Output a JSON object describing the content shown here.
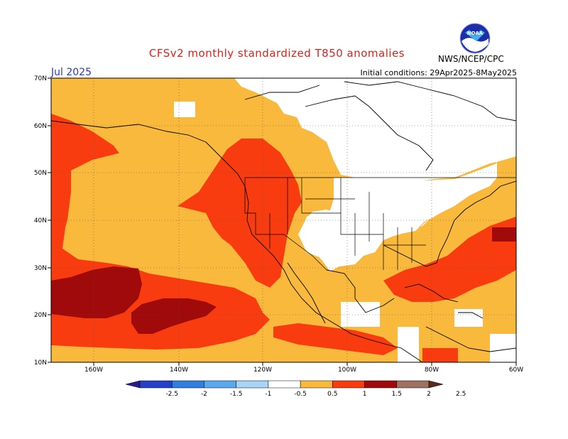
{
  "title": "CFSv2 monthly standardized T850 anomalies",
  "month_label": "Jul 2025",
  "initial_conditions": "Initial conditions: 29Apr2025-8May2025",
  "agency": "NWS/NCEP/CPC",
  "logo_text": "NOAA",
  "lat_labels": [
    "70N",
    "60N",
    "50N",
    "40N",
    "30N",
    "20N",
    "10N"
  ],
  "lon_labels": [
    "160W",
    "140W",
    "120W",
    "100W",
    "80W",
    "60W"
  ],
  "colorbar": {
    "labels": [
      "-2.5",
      "-2",
      "-1.5",
      "-1",
      "-0.5",
      "0.5",
      "1",
      "1.5",
      "2",
      "2.5"
    ],
    "colors": [
      "#2a1a8c",
      "#2440c8",
      "#2f7fe0",
      "#5aa8ee",
      "#a8d4f8",
      "#ffffff",
      "#f8b93c",
      "#f83c10",
      "#a00a0a",
      "#a07060",
      "#5a2a20"
    ]
  },
  "colors": {
    "pos1": "#f8b93c",
    "pos2": "#f83c10",
    "pos3": "#a00a0a",
    "neutral": "#ffffff"
  }
}
